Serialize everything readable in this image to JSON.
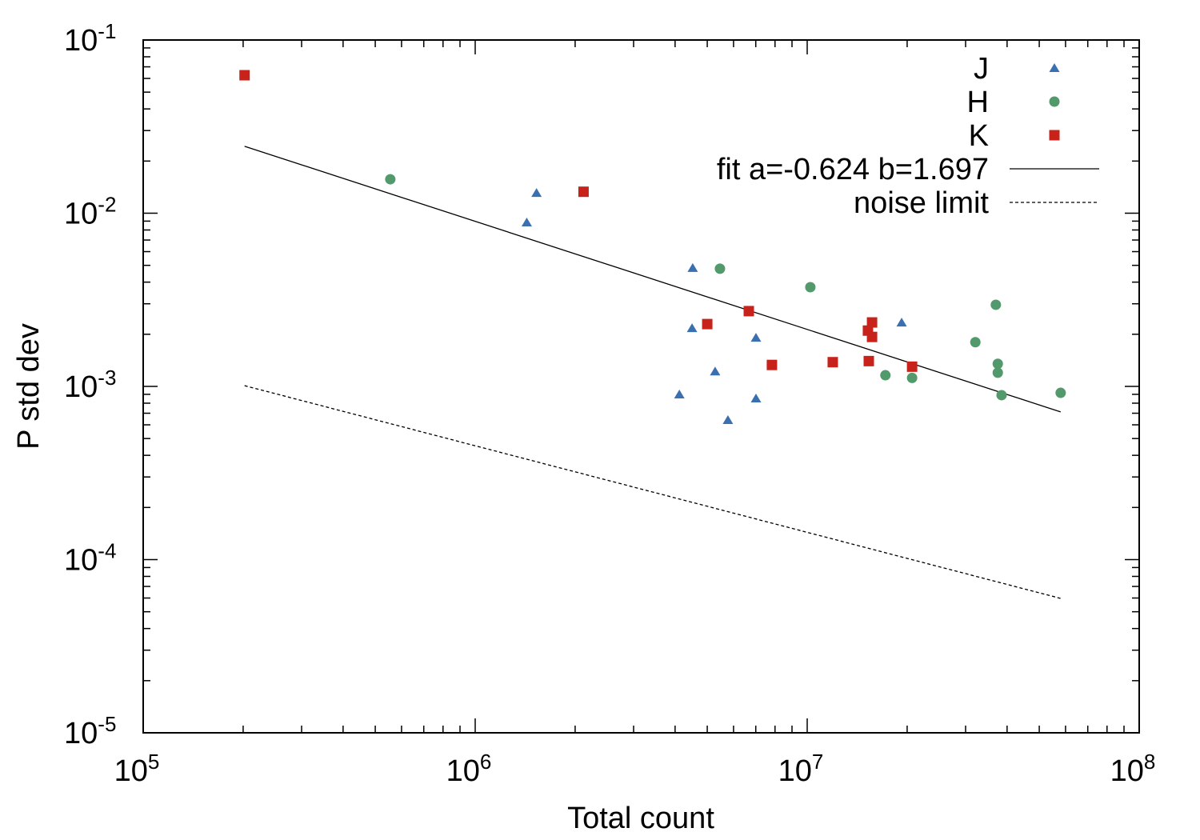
{
  "chart_data": {
    "type": "scatter",
    "xlabel": "Total count",
    "ylabel": "P std dev",
    "xscale": "log",
    "yscale": "log",
    "xlim": [
      100000,
      100000000
    ],
    "ylim": [
      1e-05,
      0.1
    ],
    "x_ticks": [
      {
        "base": "10",
        "exp": "5",
        "value": 100000
      },
      {
        "base": "10",
        "exp": "6",
        "value": 1000000
      },
      {
        "base": "10",
        "exp": "7",
        "value": 10000000
      },
      {
        "base": "10",
        "exp": "8",
        "value": 100000000
      }
    ],
    "y_ticks": [
      {
        "base": "10",
        "exp": "-1",
        "value": 0.1
      },
      {
        "base": "10",
        "exp": "-2",
        "value": 0.01
      },
      {
        "base": "10",
        "exp": "-3",
        "value": 0.001
      },
      {
        "base": "10",
        "exp": "-4",
        "value": 0.0001
      },
      {
        "base": "10",
        "exp": "-5",
        "value": 1e-05
      }
    ],
    "grid": false,
    "legend_position": "top-right",
    "series": [
      {
        "name": "J",
        "marker": "triangle",
        "color": "#3a6fb0",
        "points": [
          [
            1530000,
            0.0131
          ],
          [
            1430000,
            0.00885
          ],
          [
            4520000,
            0.00483
          ],
          [
            4500000,
            0.00217
          ],
          [
            7010000,
            0.00191
          ],
          [
            5280000,
            0.00122
          ],
          [
            4120000,
            0.000899
          ],
          [
            7010000,
            0.000852
          ],
          [
            5770000,
            0.00064
          ],
          [
            19250000,
            0.00234
          ]
        ]
      },
      {
        "name": "H",
        "marker": "circle",
        "color": "#52996b",
        "points": [
          [
            555000,
            0.0157
          ],
          [
            5460000,
            0.00478
          ],
          [
            10220000,
            0.00374
          ],
          [
            37000000,
            0.00296
          ],
          [
            32100000,
            0.0018
          ],
          [
            37500000,
            0.00135
          ],
          [
            37500000,
            0.0012
          ],
          [
            17200000,
            0.00116
          ],
          [
            20700000,
            0.00112
          ],
          [
            38500000,
            0.00089
          ],
          [
            58000000,
            0.000918
          ]
        ]
      },
      {
        "name": "K",
        "marker": "square",
        "color": "#c8231a",
        "points": [
          [
            202000,
            0.0626
          ],
          [
            2120000,
            0.0133
          ],
          [
            6670000,
            0.00272
          ],
          [
            5000000,
            0.00229
          ],
          [
            7830000,
            0.00133
          ],
          [
            11940000,
            0.00138
          ],
          [
            15330000,
            0.0014
          ],
          [
            15240000,
            0.0021
          ],
          [
            15680000,
            0.00234
          ],
          [
            15680000,
            0.00193
          ],
          [
            20700000,
            0.0013
          ]
        ]
      },
      {
        "name": "fit a=-0.624 b=1.697",
        "type": "line",
        "style": "solid",
        "color": "#000000",
        "a": -0.624,
        "b": 1.697,
        "x_range": [
          202000,
          58000000
        ]
      },
      {
        "name": "noise limit",
        "type": "line",
        "style": "dashed",
        "color": "#000000",
        "points": [
          [
            202000,
            0.00101
          ],
          [
            58000000,
            5.97e-05
          ]
        ]
      }
    ]
  }
}
